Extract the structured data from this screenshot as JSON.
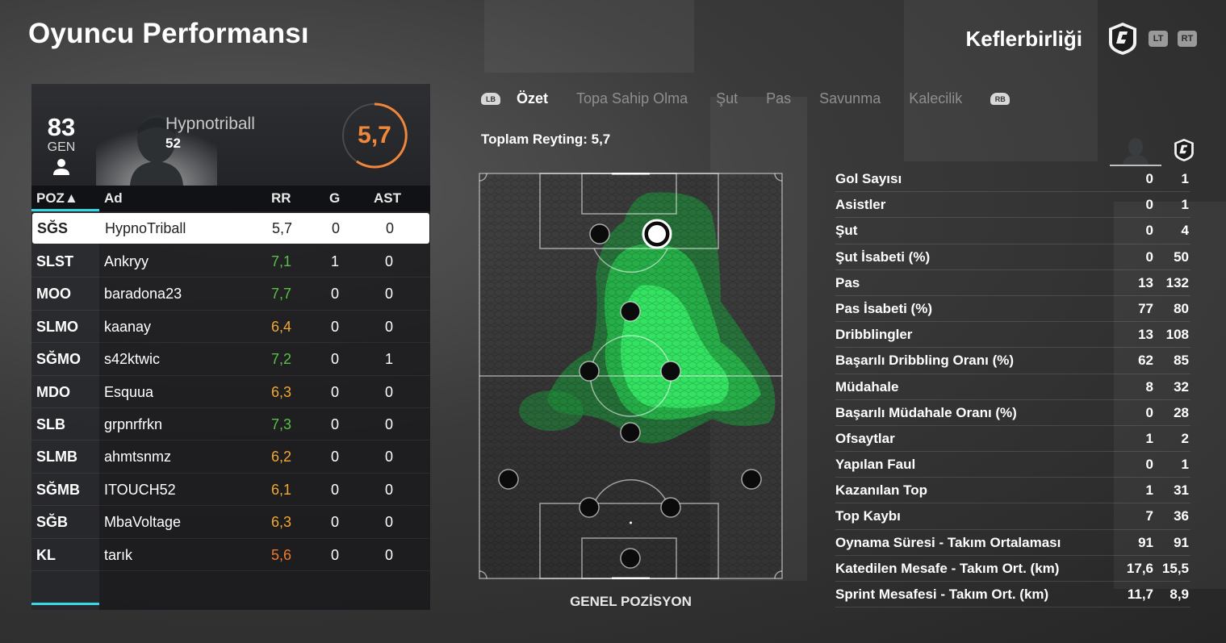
{
  "header": {
    "title": "Oyuncu Performansı",
    "club_name": "Keflerbirliği",
    "btn_lt": "LT",
    "btn_rt": "RT"
  },
  "player": {
    "gen_value": "83",
    "gen_label": "GEN",
    "name": "Hypnotriball",
    "number": "52",
    "rating": "5,7"
  },
  "table": {
    "headers": {
      "poz": "POZ▲",
      "ad": "Ad",
      "rr": "RR",
      "g": "G",
      "ast": "AST"
    },
    "rows": [
      {
        "poz": "SĞS",
        "ad": "HypnoTriball",
        "rr": "5,7",
        "g": "0",
        "ast": "0"
      },
      {
        "poz": "SLST",
        "ad": "Ankryy",
        "rr": "7,1",
        "g": "1",
        "ast": "0"
      },
      {
        "poz": "MOO",
        "ad": "baradona23",
        "rr": "7,7",
        "g": "0",
        "ast": "0"
      },
      {
        "poz": "SLMO",
        "ad": "kaanay",
        "rr": "6,4",
        "g": "0",
        "ast": "0"
      },
      {
        "poz": "SĞMO",
        "ad": "s42ktwic",
        "rr": "7,2",
        "g": "0",
        "ast": "1"
      },
      {
        "poz": "MDO",
        "ad": "Esquua",
        "rr": "6,3",
        "g": "0",
        "ast": "0"
      },
      {
        "poz": "SLB",
        "ad": "grpnrfrkn",
        "rr": "7,3",
        "g": "0",
        "ast": "0"
      },
      {
        "poz": "SLMB",
        "ad": "ahmtsnmz",
        "rr": "6,2",
        "g": "0",
        "ast": "0"
      },
      {
        "poz": "SĞMB",
        "ad": "ITOUCH52",
        "rr": "6,1",
        "g": "0",
        "ast": "0"
      },
      {
        "poz": "SĞB",
        "ad": "MbaVoltage",
        "rr": "6,3",
        "g": "0",
        "ast": "0"
      },
      {
        "poz": "KL",
        "ad": "tarık",
        "rr": "5,6",
        "g": "0",
        "ast": "0"
      }
    ]
  },
  "tabs": {
    "lb": "LB",
    "rb": "RB",
    "items": [
      "Özet",
      "Topa Sahip Olma",
      "Şut",
      "Pas",
      "Savunma",
      "Kalecilik"
    ]
  },
  "summary": {
    "total_rating": "Toplam Reyting: 5,7",
    "pitch_label": "GENEL POZİSYON"
  },
  "stats": [
    {
      "label": "Gol Sayısı",
      "player": "0",
      "team": "1"
    },
    {
      "label": "Asistler",
      "player": "0",
      "team": "1"
    },
    {
      "label": "Şut",
      "player": "0",
      "team": "4"
    },
    {
      "label": "Şut İsabeti (%)",
      "player": "0",
      "team": "50"
    },
    {
      "label": "Pas",
      "player": "13",
      "team": "132"
    },
    {
      "label": "Pas İsabeti (%)",
      "player": "77",
      "team": "80"
    },
    {
      "label": "Dribblingler",
      "player": "13",
      "team": "108"
    },
    {
      "label": "Başarılı Dribbling Oranı (%)",
      "player": "62",
      "team": "85"
    },
    {
      "label": "Müdahale",
      "player": "8",
      "team": "32"
    },
    {
      "label": "Başarılı Müdahale Oranı (%)",
      "player": "0",
      "team": "28"
    },
    {
      "label": "Ofsaytlar",
      "player": "1",
      "team": "2"
    },
    {
      "label": "Yapılan Faul",
      "player": "0",
      "team": "1"
    },
    {
      "label": "Kazanılan Top",
      "player": "1",
      "team": "31"
    },
    {
      "label": "Top Kaybı",
      "player": "7",
      "team": "36"
    },
    {
      "label": "Oynama Süresi - Takım Ortalaması",
      "player": "91",
      "team": "91"
    },
    {
      "label": "Katedilen Mesafe - Takım Ort. (km)",
      "player": "17,6",
      "team": "15,5"
    },
    {
      "label": "Sprint Mesafesi - Takım Ort. (km)",
      "player": "11,7",
      "team": "8,9"
    }
  ],
  "colors": {
    "accent_cyan": "#38d7e6",
    "rating_orange": "#f0873a",
    "heat_green": "#2ee65a"
  },
  "icons": {
    "club_logo": "club-crest-icon",
    "person": "person-icon"
  }
}
